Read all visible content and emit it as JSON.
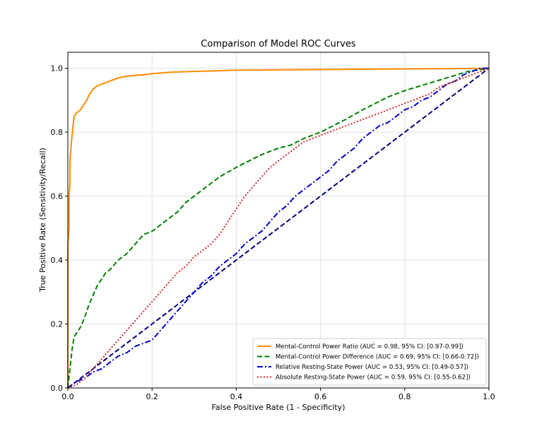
{
  "chart_data": {
    "type": "line",
    "title": "Comparison of Model ROC Curves",
    "xlabel": "False Positive Rate (1 - Specificity)",
    "ylabel": "True Positive Rate (Sensitivity/Recall)",
    "xlim": [
      0,
      1
    ],
    "ylim": [
      0,
      1.05
    ],
    "xticks": [
      0.0,
      0.2,
      0.4,
      0.6,
      0.8,
      1.0
    ],
    "yticks": [
      0.0,
      0.2,
      0.4,
      0.6,
      0.8,
      1.0
    ],
    "xtick_labels": [
      "0.0",
      "0.2",
      "0.4",
      "0.6",
      "0.8",
      "1.0"
    ],
    "ytick_labels": [
      "0.0",
      "0.2",
      "0.4",
      "0.6",
      "0.8",
      "1.0"
    ],
    "grid": true,
    "legend_position": "lower-right",
    "series": [
      {
        "name": "Mental-Control Power Ratio (AUC = 0.98, 95% CI: [0.97-0.99])",
        "color": "#ff8c00",
        "style": "solid",
        "x": [
          0,
          0,
          0.003,
          0.003,
          0.005,
          0.005,
          0.008,
          0.01,
          0.015,
          0.02,
          0.03,
          0.035,
          0.04,
          0.045,
          0.05,
          0.055,
          0.06,
          0.065,
          0.07,
          0.08,
          0.09,
          0.1,
          0.11,
          0.12,
          0.14,
          0.16,
          0.18,
          0.2,
          0.25,
          0.3,
          0.35,
          0.4,
          0.5,
          0.6,
          0.7,
          0.8,
          0.9,
          1.0
        ],
        "y": [
          0,
          0.44,
          0.5,
          0.6,
          0.64,
          0.71,
          0.76,
          0.79,
          0.85,
          0.86,
          0.87,
          0.88,
          0.89,
          0.9,
          0.915,
          0.925,
          0.935,
          0.94,
          0.945,
          0.95,
          0.955,
          0.96,
          0.965,
          0.97,
          0.975,
          0.978,
          0.98,
          0.983,
          0.988,
          0.99,
          0.992,
          0.994,
          0.995,
          0.996,
          0.997,
          0.998,
          0.999,
          1.0
        ]
      },
      {
        "name": "Mental-Control Power Difference (AUC = 0.69, 95% CI: [0.66-0.72])",
        "color": "#008000",
        "style": "dashed",
        "x": [
          0,
          0.005,
          0.01,
          0.015,
          0.02,
          0.03,
          0.04,
          0.05,
          0.06,
          0.07,
          0.08,
          0.09,
          0.1,
          0.12,
          0.14,
          0.16,
          0.18,
          0.2,
          0.22,
          0.24,
          0.26,
          0.28,
          0.3,
          0.33,
          0.36,
          0.4,
          0.43,
          0.46,
          0.5,
          0.53,
          0.56,
          0.6,
          0.63,
          0.66,
          0.7,
          0.73,
          0.76,
          0.8,
          0.85,
          0.9,
          0.95,
          1.0
        ],
        "y": [
          0,
          0.06,
          0.12,
          0.16,
          0.17,
          0.19,
          0.22,
          0.26,
          0.29,
          0.32,
          0.34,
          0.36,
          0.37,
          0.4,
          0.42,
          0.45,
          0.48,
          0.49,
          0.51,
          0.53,
          0.55,
          0.58,
          0.6,
          0.63,
          0.66,
          0.69,
          0.71,
          0.73,
          0.75,
          0.76,
          0.78,
          0.8,
          0.82,
          0.84,
          0.87,
          0.89,
          0.91,
          0.93,
          0.95,
          0.97,
          0.99,
          1.0
        ]
      },
      {
        "name": "Relative Resting-State Power (AUC = 0.53, 95% CI: [0.49-0.57])",
        "color": "#0000cd",
        "style": "dashdot",
        "x": [
          0,
          0.02,
          0.04,
          0.06,
          0.08,
          0.1,
          0.12,
          0.14,
          0.16,
          0.18,
          0.2,
          0.22,
          0.24,
          0.26,
          0.28,
          0.3,
          0.32,
          0.34,
          0.36,
          0.38,
          0.4,
          0.42,
          0.44,
          0.46,
          0.48,
          0.5,
          0.52,
          0.54,
          0.56,
          0.58,
          0.6,
          0.62,
          0.64,
          0.66,
          0.68,
          0.7,
          0.72,
          0.74,
          0.76,
          0.78,
          0.8,
          0.82,
          0.84,
          0.86,
          0.88,
          0.9,
          0.92,
          0.94,
          0.96,
          0.98,
          1.0
        ],
        "y": [
          0,
          0.02,
          0.03,
          0.05,
          0.06,
          0.08,
          0.1,
          0.11,
          0.13,
          0.14,
          0.15,
          0.18,
          0.21,
          0.24,
          0.27,
          0.3,
          0.33,
          0.35,
          0.38,
          0.4,
          0.42,
          0.45,
          0.47,
          0.49,
          0.52,
          0.55,
          0.57,
          0.6,
          0.62,
          0.64,
          0.66,
          0.68,
          0.71,
          0.73,
          0.75,
          0.78,
          0.8,
          0.82,
          0.83,
          0.85,
          0.87,
          0.88,
          0.9,
          0.91,
          0.93,
          0.95,
          0.96,
          0.98,
          0.99,
          1.0,
          1.0
        ]
      },
      {
        "name": "Absolute Resting-State Power (AUC = 0.59, 95% CI: [0.55-0.62])",
        "color": "#d62728",
        "style": "dotted",
        "x": [
          0,
          0.02,
          0.04,
          0.06,
          0.08,
          0.1,
          0.12,
          0.14,
          0.16,
          0.18,
          0.2,
          0.22,
          0.24,
          0.26,
          0.28,
          0.3,
          0.32,
          0.34,
          0.36,
          0.38,
          0.4,
          0.42,
          0.44,
          0.46,
          0.48,
          0.5,
          0.52,
          0.54,
          0.56,
          0.58,
          0.6,
          0.62,
          0.64,
          0.66,
          0.68,
          0.7,
          0.72,
          0.74,
          0.76,
          0.78,
          0.8,
          0.82,
          0.84,
          0.86,
          0.88,
          0.9,
          0.92,
          0.94,
          0.96,
          0.98,
          1.0
        ],
        "y": [
          0,
          0.01,
          0.03,
          0.06,
          0.09,
          0.12,
          0.15,
          0.18,
          0.21,
          0.24,
          0.27,
          0.3,
          0.33,
          0.36,
          0.38,
          0.41,
          0.43,
          0.45,
          0.48,
          0.52,
          0.56,
          0.6,
          0.63,
          0.66,
          0.69,
          0.71,
          0.73,
          0.75,
          0.77,
          0.78,
          0.79,
          0.8,
          0.81,
          0.82,
          0.83,
          0.84,
          0.85,
          0.86,
          0.87,
          0.88,
          0.89,
          0.9,
          0.91,
          0.92,
          0.94,
          0.95,
          0.96,
          0.97,
          0.98,
          0.99,
          1.0
        ]
      },
      {
        "name": "",
        "color": "#000080",
        "style": "dashed",
        "x": [
          0,
          1
        ],
        "y": [
          0,
          1
        ]
      }
    ]
  }
}
